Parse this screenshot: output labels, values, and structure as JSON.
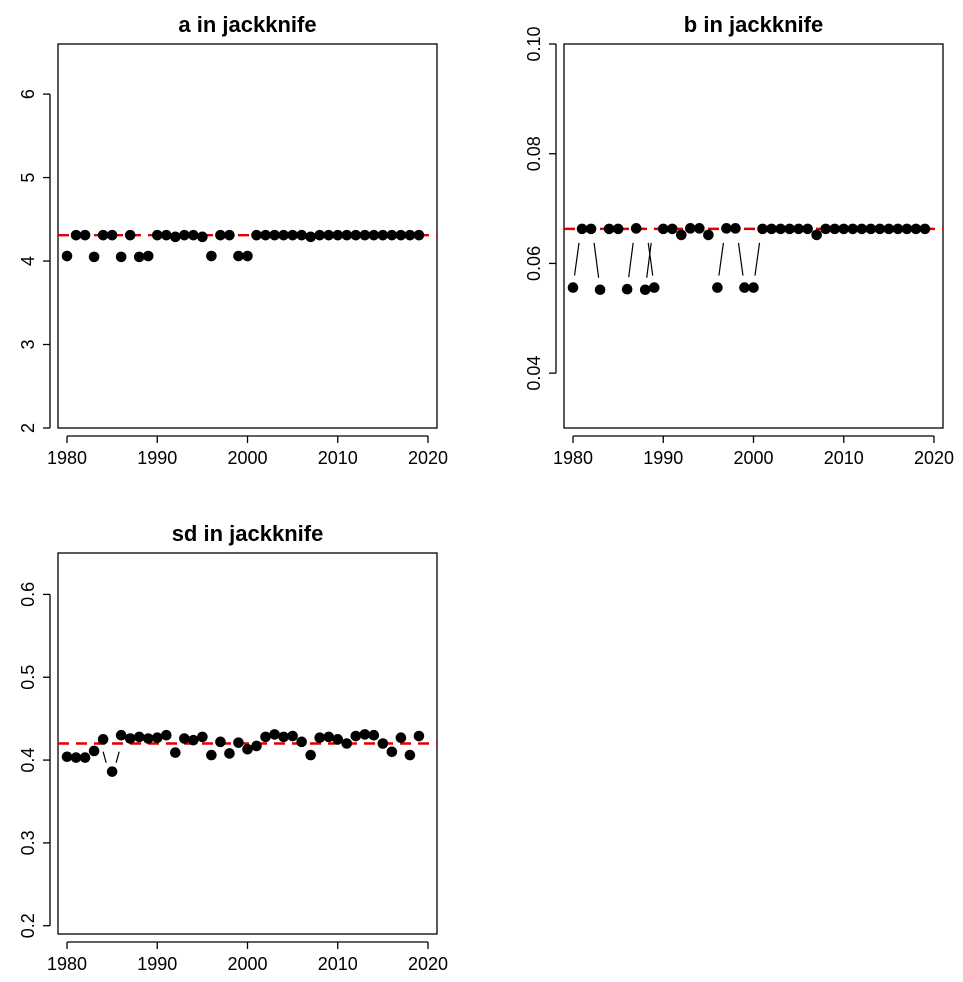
{
  "chart_data": [
    {
      "type": "scatter",
      "title": "a in jackknife",
      "xlim": [
        1979,
        2021
      ],
      "ylim": [
        2,
        6.6
      ],
      "x_ticks": [
        1980,
        1990,
        2000,
        2010,
        2020
      ],
      "y_ticks": [
        2,
        3,
        4,
        5,
        6
      ],
      "reference_line": 4.31,
      "reference_color": "#e00000",
      "x": [
        1980,
        1981,
        1982,
        1983,
        1984,
        1985,
        1986,
        1987,
        1988,
        1989,
        1990,
        1991,
        1992,
        1993,
        1994,
        1995,
        1996,
        1997,
        1998,
        1999,
        2000,
        2001,
        2002,
        2003,
        2004,
        2005,
        2006,
        2007,
        2008,
        2009,
        2010,
        2011,
        2012,
        2013,
        2014,
        2015,
        2016,
        2017,
        2018,
        2019
      ],
      "y": [
        4.06,
        4.31,
        4.31,
        4.05,
        4.31,
        4.31,
        4.05,
        4.31,
        4.05,
        4.06,
        4.31,
        4.31,
        4.29,
        4.31,
        4.31,
        4.29,
        4.06,
        4.31,
        4.31,
        4.06,
        4.06,
        4.31,
        4.31,
        4.31,
        4.31,
        4.31,
        4.31,
        4.29,
        4.31,
        4.31,
        4.31,
        4.31,
        4.31,
        4.31,
        4.31,
        4.31,
        4.31,
        4.31,
        4.31,
        4.31
      ],
      "grid": false
    },
    {
      "type": "scatter",
      "title": "b in jackknife",
      "xlim": [
        1979,
        2021
      ],
      "ylim": [
        0.03,
        0.1
      ],
      "x_ticks": [
        1980,
        1990,
        2000,
        2010,
        2020
      ],
      "y_ticks": [
        0.04,
        0.06,
        0.08,
        0.1
      ],
      "y_tick_labels": [
        "0.04",
        "0.06",
        "0.08",
        "0.10"
      ],
      "reference_line": 0.0663,
      "reference_color": "#e00000",
      "x": [
        1980,
        1981,
        1982,
        1983,
        1984,
        1985,
        1986,
        1987,
        1988,
        1989,
        1990,
        1991,
        1992,
        1993,
        1994,
        1995,
        1996,
        1997,
        1998,
        1999,
        2000,
        2001,
        2002,
        2003,
        2004,
        2005,
        2006,
        2007,
        2008,
        2009,
        2010,
        2011,
        2012,
        2013,
        2014,
        2015,
        2016,
        2017,
        2018,
        2019
      ],
      "y": [
        0.0556,
        0.0663,
        0.0663,
        0.0552,
        0.0663,
        0.0663,
        0.0553,
        0.0664,
        0.0552,
        0.0556,
        0.0663,
        0.0663,
        0.0652,
        0.0664,
        0.0664,
        0.0652,
        0.0556,
        0.0664,
        0.0664,
        0.0556,
        0.0556,
        0.0663,
        0.0663,
        0.0663,
        0.0663,
        0.0663,
        0.0663,
        0.0652,
        0.0663,
        0.0663,
        0.0663,
        0.0663,
        0.0663,
        0.0663,
        0.0663,
        0.0663,
        0.0663,
        0.0663,
        0.0663,
        0.0663
      ],
      "grid": false
    },
    {
      "type": "scatter",
      "title": "sd in jackknife",
      "xlim": [
        1979,
        2021
      ],
      "ylim": [
        0.19,
        0.65
      ],
      "x_ticks": [
        1980,
        1990,
        2000,
        2010,
        2020
      ],
      "y_ticks": [
        0.2,
        0.3,
        0.4,
        0.5,
        0.6
      ],
      "y_tick_labels": [
        "0.2",
        "0.3",
        "0.4",
        "0.5",
        "0.6"
      ],
      "reference_line": 0.42,
      "reference_color": "#e00000",
      "x": [
        1980,
        1981,
        1982,
        1983,
        1984,
        1985,
        1986,
        1987,
        1988,
        1989,
        1990,
        1991,
        1992,
        1993,
        1994,
        1995,
        1996,
        1997,
        1998,
        1999,
        2000,
        2001,
        2002,
        2003,
        2004,
        2005,
        2006,
        2007,
        2008,
        2009,
        2010,
        2011,
        2012,
        2013,
        2014,
        2015,
        2016,
        2017,
        2018,
        2019
      ],
      "y": [
        0.404,
        0.403,
        0.403,
        0.411,
        0.425,
        0.386,
        0.43,
        0.426,
        0.428,
        0.426,
        0.427,
        0.43,
        0.409,
        0.426,
        0.424,
        0.428,
        0.406,
        0.422,
        0.408,
        0.421,
        0.413,
        0.417,
        0.428,
        0.431,
        0.428,
        0.429,
        0.422,
        0.406,
        0.427,
        0.428,
        0.425,
        0.42,
        0.429,
        0.431,
        0.43,
        0.42,
        0.41,
        0.427,
        0.406,
        0.429
      ],
      "grid": false
    }
  ]
}
